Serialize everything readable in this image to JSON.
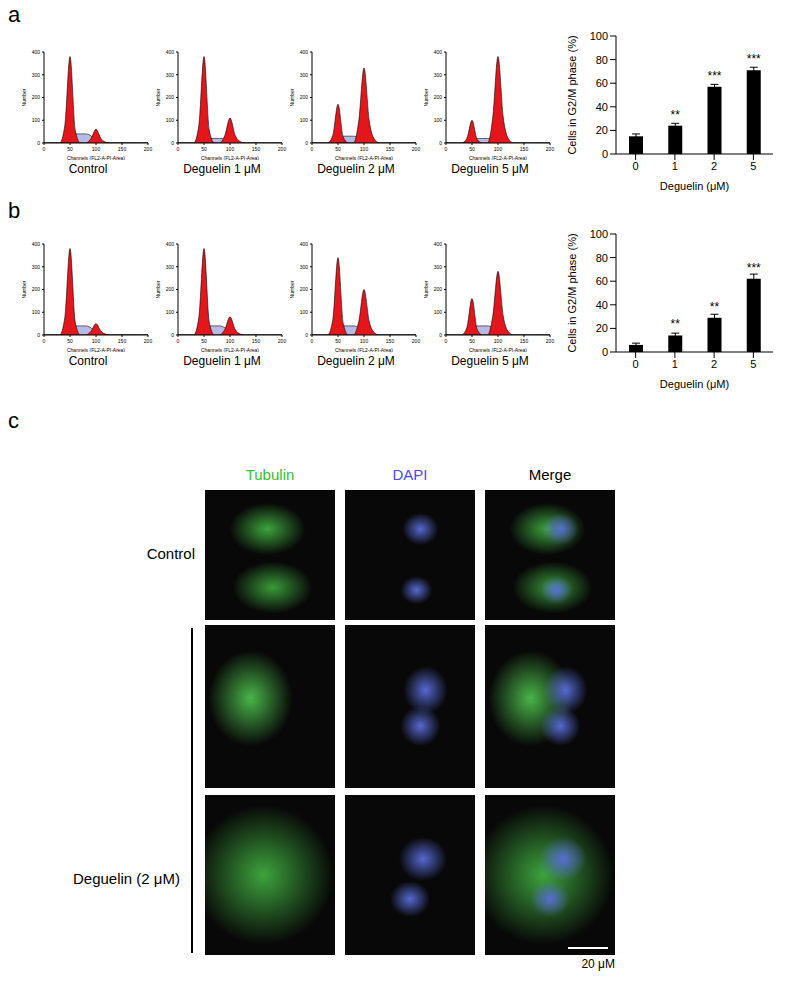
{
  "panel_labels": [
    "a",
    "b",
    "c"
  ],
  "chart_data": [
    {
      "type": "area",
      "title": "Control",
      "xlabel": "Channels (FL2-A-PI-Area)",
      "ylabel": "Number",
      "x": [
        0,
        10,
        20,
        30,
        40,
        50,
        60,
        70,
        80,
        90,
        100,
        110,
        120,
        130,
        140,
        150,
        160,
        170,
        180,
        190,
        200
      ],
      "xlim": [
        0,
        200
      ],
      "xticks": [
        0,
        50,
        100,
        150,
        200
      ],
      "ylim": [
        0,
        400
      ],
      "yticks": [
        0,
        100,
        200,
        300,
        400
      ],
      "series": [
        {
          "color": "#b9b9e6",
          "values": [
            0,
            0,
            0,
            0,
            0,
            0,
            40,
            40,
            40,
            32,
            12,
            0,
            0,
            0,
            0,
            0,
            0,
            0,
            0,
            0,
            0
          ]
        },
        {
          "color": "#e3161c",
          "values": [
            0,
            0,
            0,
            0,
            76,
            380,
            57,
            0,
            0,
            0,
            0,
            0,
            0,
            0,
            0,
            0,
            0,
            0,
            0,
            0,
            0
          ]
        },
        {
          "color": "#e3161c",
          "values": [
            0,
            0,
            0,
            0,
            0,
            0,
            0,
            0,
            0,
            18,
            60,
            18,
            3,
            0,
            0,
            0,
            0,
            0,
            0,
            0,
            0
          ]
        }
      ]
    },
    {
      "type": "area",
      "title": "Deguelin 1 μM",
      "xlabel": "Channels (FL2-A-PI-Area)",
      "ylabel": "Number",
      "x": [
        0,
        10,
        20,
        30,
        40,
        50,
        60,
        70,
        80,
        90,
        100,
        110,
        120,
        130,
        140,
        150,
        160,
        170,
        180,
        190,
        200
      ],
      "xlim": [
        0,
        200
      ],
      "xticks": [
        0,
        50,
        100,
        150,
        200
      ],
      "ylim": [
        0,
        400
      ],
      "yticks": [
        0,
        100,
        200,
        300,
        400
      ],
      "series": [
        {
          "color": "#b9b9e6",
          "values": [
            0,
            0,
            0,
            0,
            0,
            0,
            20,
            20,
            20,
            16,
            6,
            0,
            0,
            0,
            0,
            0,
            0,
            0,
            0,
            0,
            0
          ]
        },
        {
          "color": "#e3161c",
          "values": [
            0,
            0,
            0,
            0,
            76,
            380,
            57,
            0,
            0,
            0,
            0,
            0,
            0,
            0,
            0,
            0,
            0,
            0,
            0,
            0,
            0
          ]
        },
        {
          "color": "#e3161c",
          "values": [
            0,
            0,
            0,
            0,
            0,
            0,
            0,
            0,
            0,
            33,
            110,
            33,
            6,
            0,
            0,
            0,
            0,
            0,
            0,
            0,
            0
          ]
        }
      ]
    },
    {
      "type": "area",
      "title": "Deguelin 2 μM",
      "xlabel": "Channels (FL2-A-PI-Area)",
      "ylabel": "Number",
      "x": [
        0,
        10,
        20,
        30,
        40,
        50,
        60,
        70,
        80,
        90,
        100,
        110,
        120,
        130,
        140,
        150,
        160,
        170,
        180,
        190,
        200
      ],
      "xlim": [
        0,
        200
      ],
      "xticks": [
        0,
        50,
        100,
        150,
        200
      ],
      "ylim": [
        0,
        400
      ],
      "yticks": [
        0,
        100,
        200,
        300,
        400
      ],
      "series": [
        {
          "color": "#b9b9e6",
          "values": [
            0,
            0,
            0,
            0,
            0,
            0,
            30,
            30,
            30,
            24,
            9,
            0,
            0,
            0,
            0,
            0,
            0,
            0,
            0,
            0,
            0
          ]
        },
        {
          "color": "#e3161c",
          "values": [
            0,
            0,
            0,
            0,
            34,
            170,
            26,
            0,
            0,
            0,
            0,
            0,
            0,
            0,
            0,
            0,
            0,
            0,
            0,
            0,
            0
          ]
        },
        {
          "color": "#e3161c",
          "values": [
            0,
            0,
            0,
            0,
            0,
            0,
            0,
            0,
            0,
            99,
            330,
            99,
            17,
            0,
            0,
            0,
            0,
            0,
            0,
            0,
            0
          ]
        }
      ]
    },
    {
      "type": "area",
      "title": "Deguelin 5 μM",
      "xlabel": "Channels (FL2-A-PI-Area)",
      "ylabel": "Number",
      "x": [
        0,
        10,
        20,
        30,
        40,
        50,
        60,
        70,
        80,
        90,
        100,
        110,
        120,
        130,
        140,
        150,
        160,
        170,
        180,
        190,
        200
      ],
      "xlim": [
        0,
        200
      ],
      "xticks": [
        0,
        50,
        100,
        150,
        200
      ],
      "ylim": [
        0,
        400
      ],
      "yticks": [
        0,
        100,
        200,
        300,
        400
      ],
      "series": [
        {
          "color": "#b9b9e6",
          "values": [
            0,
            0,
            0,
            0,
            0,
            0,
            20,
            20,
            20,
            16,
            6,
            0,
            0,
            0,
            0,
            0,
            0,
            0,
            0,
            0,
            0
          ]
        },
        {
          "color": "#e3161c",
          "values": [
            0,
            0,
            0,
            0,
            20,
            100,
            15,
            0,
            0,
            0,
            0,
            0,
            0,
            0,
            0,
            0,
            0,
            0,
            0,
            0,
            0
          ]
        },
        {
          "color": "#e3161c",
          "values": [
            0,
            0,
            0,
            0,
            0,
            0,
            0,
            0,
            0,
            114,
            380,
            114,
            19,
            0,
            0,
            0,
            0,
            0,
            0,
            0,
            0
          ]
        }
      ]
    },
    {
      "type": "bar",
      "xlabel": "Deguelin (μM)",
      "ylabel": "Cells in G2/M phase (%)",
      "categories": [
        "0",
        "1",
        "2",
        "5"
      ],
      "values": [
        15,
        24,
        57,
        71
      ],
      "errors": [
        2,
        2,
        2,
        2.5
      ],
      "annotations": [
        null,
        "**",
        "***",
        "***"
      ],
      "color": "#000000",
      "ylim": [
        0,
        100
      ],
      "yticks": [
        0,
        20,
        40,
        60,
        80,
        100
      ]
    },
    {
      "type": "area",
      "title": "Control",
      "xlabel": "Channels (FL2-A-PI-Area)",
      "ylabel": "Number",
      "x": [
        0,
        10,
        20,
        30,
        40,
        50,
        60,
        70,
        80,
        90,
        100,
        110,
        120,
        130,
        140,
        150,
        160,
        170,
        180,
        190,
        200
      ],
      "xlim": [
        0,
        200
      ],
      "xticks": [
        0,
        50,
        100,
        150,
        200
      ],
      "ylim": [
        0,
        400
      ],
      "yticks": [
        0,
        100,
        200,
        300,
        400
      ],
      "series": [
        {
          "color": "#b9b9e6",
          "values": [
            0,
            0,
            0,
            0,
            0,
            0,
            40,
            40,
            40,
            32,
            12,
            0,
            0,
            0,
            0,
            0,
            0,
            0,
            0,
            0,
            0
          ]
        },
        {
          "color": "#e3161c",
          "values": [
            0,
            0,
            0,
            0,
            76,
            380,
            57,
            0,
            0,
            0,
            0,
            0,
            0,
            0,
            0,
            0,
            0,
            0,
            0,
            0,
            0
          ]
        },
        {
          "color": "#e3161c",
          "values": [
            0,
            0,
            0,
            0,
            0,
            0,
            0,
            0,
            0,
            15,
            50,
            15,
            3,
            0,
            0,
            0,
            0,
            0,
            0,
            0,
            0
          ]
        }
      ]
    },
    {
      "type": "area",
      "title": "Deguelin 1 μM",
      "xlabel": "Channels (FL2-A-PI-Area)",
      "ylabel": "Number",
      "x": [
        0,
        10,
        20,
        30,
        40,
        50,
        60,
        70,
        80,
        90,
        100,
        110,
        120,
        130,
        140,
        150,
        160,
        170,
        180,
        190,
        200
      ],
      "xlim": [
        0,
        200
      ],
      "xticks": [
        0,
        50,
        100,
        150,
        200
      ],
      "ylim": [
        0,
        400
      ],
      "yticks": [
        0,
        100,
        200,
        300,
        400
      ],
      "series": [
        {
          "color": "#b9b9e6",
          "values": [
            0,
            0,
            0,
            0,
            0,
            0,
            40,
            40,
            40,
            32,
            12,
            0,
            0,
            0,
            0,
            0,
            0,
            0,
            0,
            0,
            0
          ]
        },
        {
          "color": "#e3161c",
          "values": [
            0,
            0,
            0,
            0,
            76,
            380,
            57,
            0,
            0,
            0,
            0,
            0,
            0,
            0,
            0,
            0,
            0,
            0,
            0,
            0,
            0
          ]
        },
        {
          "color": "#e3161c",
          "values": [
            0,
            0,
            0,
            0,
            0,
            0,
            0,
            0,
            0,
            24,
            80,
            24,
            4,
            0,
            0,
            0,
            0,
            0,
            0,
            0,
            0
          ]
        }
      ]
    },
    {
      "type": "area",
      "title": "Deguelin 2 μM",
      "xlabel": "Channels (FL2-A-PI-Area)",
      "ylabel": "Number",
      "x": [
        0,
        10,
        20,
        30,
        40,
        50,
        60,
        70,
        80,
        90,
        100,
        110,
        120,
        130,
        140,
        150,
        160,
        170,
        180,
        190,
        200
      ],
      "xlim": [
        0,
        200
      ],
      "xticks": [
        0,
        50,
        100,
        150,
        200
      ],
      "ylim": [
        0,
        400
      ],
      "yticks": [
        0,
        100,
        200,
        300,
        400
      ],
      "series": [
        {
          "color": "#b9b9e6",
          "values": [
            0,
            0,
            0,
            0,
            0,
            0,
            40,
            40,
            40,
            32,
            12,
            0,
            0,
            0,
            0,
            0,
            0,
            0,
            0,
            0,
            0
          ]
        },
        {
          "color": "#e3161c",
          "values": [
            0,
            0,
            0,
            0,
            68,
            340,
            51,
            0,
            0,
            0,
            0,
            0,
            0,
            0,
            0,
            0,
            0,
            0,
            0,
            0,
            0
          ]
        },
        {
          "color": "#e3161c",
          "values": [
            0,
            0,
            0,
            0,
            0,
            0,
            0,
            0,
            0,
            60,
            200,
            60,
            10,
            0,
            0,
            0,
            0,
            0,
            0,
            0,
            0
          ]
        }
      ]
    },
    {
      "type": "area",
      "title": "Deguelin 5 μM",
      "xlabel": "Channels (FL2-A-PI-Area)",
      "ylabel": "Number",
      "x": [
        0,
        10,
        20,
        30,
        40,
        50,
        60,
        70,
        80,
        90,
        100,
        110,
        120,
        130,
        140,
        150,
        160,
        170,
        180,
        190,
        200
      ],
      "xlim": [
        0,
        200
      ],
      "xticks": [
        0,
        50,
        100,
        150,
        200
      ],
      "ylim": [
        0,
        400
      ],
      "yticks": [
        0,
        100,
        200,
        300,
        400
      ],
      "series": [
        {
          "color": "#b9b9e6",
          "values": [
            0,
            0,
            0,
            0,
            0,
            0,
            40,
            40,
            40,
            32,
            12,
            0,
            0,
            0,
            0,
            0,
            0,
            0,
            0,
            0,
            0
          ]
        },
        {
          "color": "#e3161c",
          "values": [
            0,
            0,
            0,
            0,
            32,
            160,
            24,
            0,
            0,
            0,
            0,
            0,
            0,
            0,
            0,
            0,
            0,
            0,
            0,
            0,
            0
          ]
        },
        {
          "color": "#e3161c",
          "values": [
            0,
            0,
            0,
            0,
            0,
            0,
            0,
            0,
            0,
            84,
            280,
            84,
            14,
            0,
            0,
            0,
            0,
            0,
            0,
            0,
            0
          ]
        }
      ]
    },
    {
      "type": "bar",
      "xlabel": "Deguelin (μM)",
      "ylabel": "Cells in G2/M phase (%)",
      "categories": [
        "0",
        "1",
        "2",
        "5"
      ],
      "values": [
        6,
        14,
        29,
        62
      ],
      "errors": [
        1.5,
        2,
        3,
        4
      ],
      "annotations": [
        null,
        "**",
        "**",
        "***"
      ],
      "color": "#000000",
      "ylim": [
        0,
        100
      ],
      "yticks": [
        0,
        20,
        40,
        60,
        80,
        100
      ]
    }
  ],
  "microscopy": {
    "columns": [
      "Tubulin",
      "DAPI",
      "Merge"
    ],
    "colors": [
      "#35c035",
      "#4848ff",
      "#000000"
    ],
    "rows": [
      "Control",
      "Deguelin (2 μM)"
    ],
    "scale_bar": "20 μM"
  }
}
